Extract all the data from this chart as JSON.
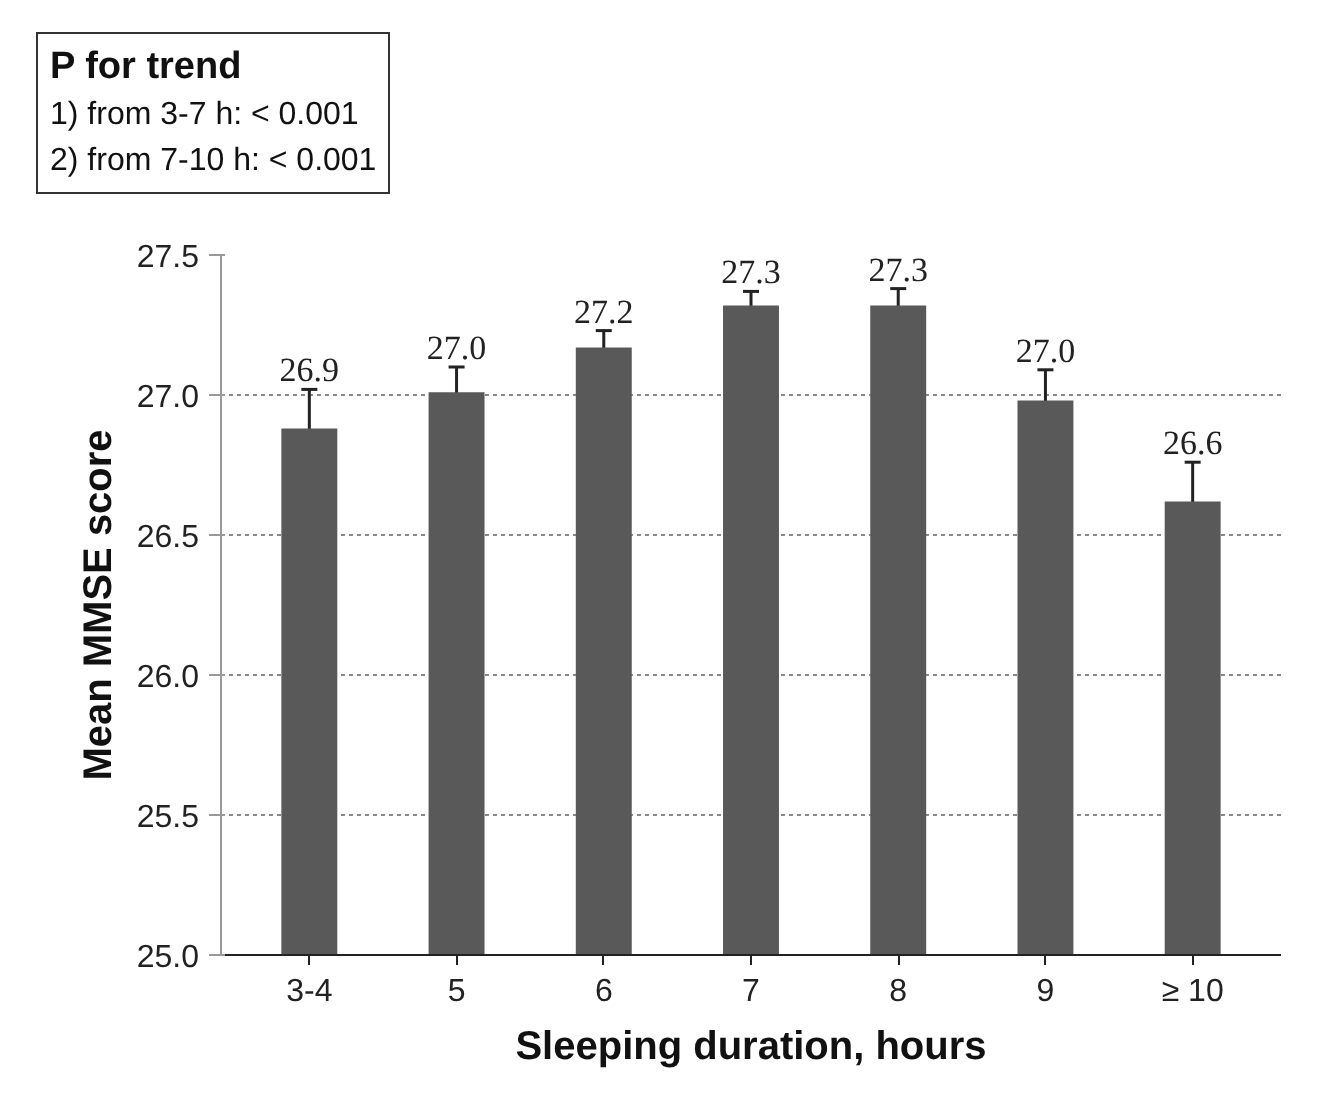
{
  "chart_data": {
    "type": "bar",
    "xlabel": "Sleeping duration, hours",
    "ylabel": "Mean MMSE score",
    "categories": [
      "3-4",
      "5",
      "6",
      "7",
      "8",
      "9",
      "≥ 10"
    ],
    "values": [
      26.88,
      27.01,
      27.17,
      27.32,
      27.32,
      26.98,
      26.62
    ],
    "errors": [
      0.14,
      0.09,
      0.06,
      0.05,
      0.06,
      0.11,
      0.14
    ],
    "value_labels": [
      "26.9",
      "27.0",
      "27.2",
      "27.3",
      "27.3",
      "27.0",
      "26.6"
    ],
    "color": "#595959",
    "ylim": [
      25.0,
      27.5
    ],
    "yticks": [
      {
        "value": 25.0,
        "label": "25.0"
      },
      {
        "value": 25.5,
        "label": "25.5"
      },
      {
        "value": 26.0,
        "label": "26.0"
      },
      {
        "value": 26.5,
        "label": "26.5"
      },
      {
        "value": 27.0,
        "label": "27.0"
      },
      {
        "value": 27.5,
        "label": "27.5"
      }
    ],
    "grid": "y",
    "annotations": [
      "P for trend",
      "1) from 3-7 h: < 0.001",
      "2) from 7-10 h: < 0.001"
    ]
  }
}
